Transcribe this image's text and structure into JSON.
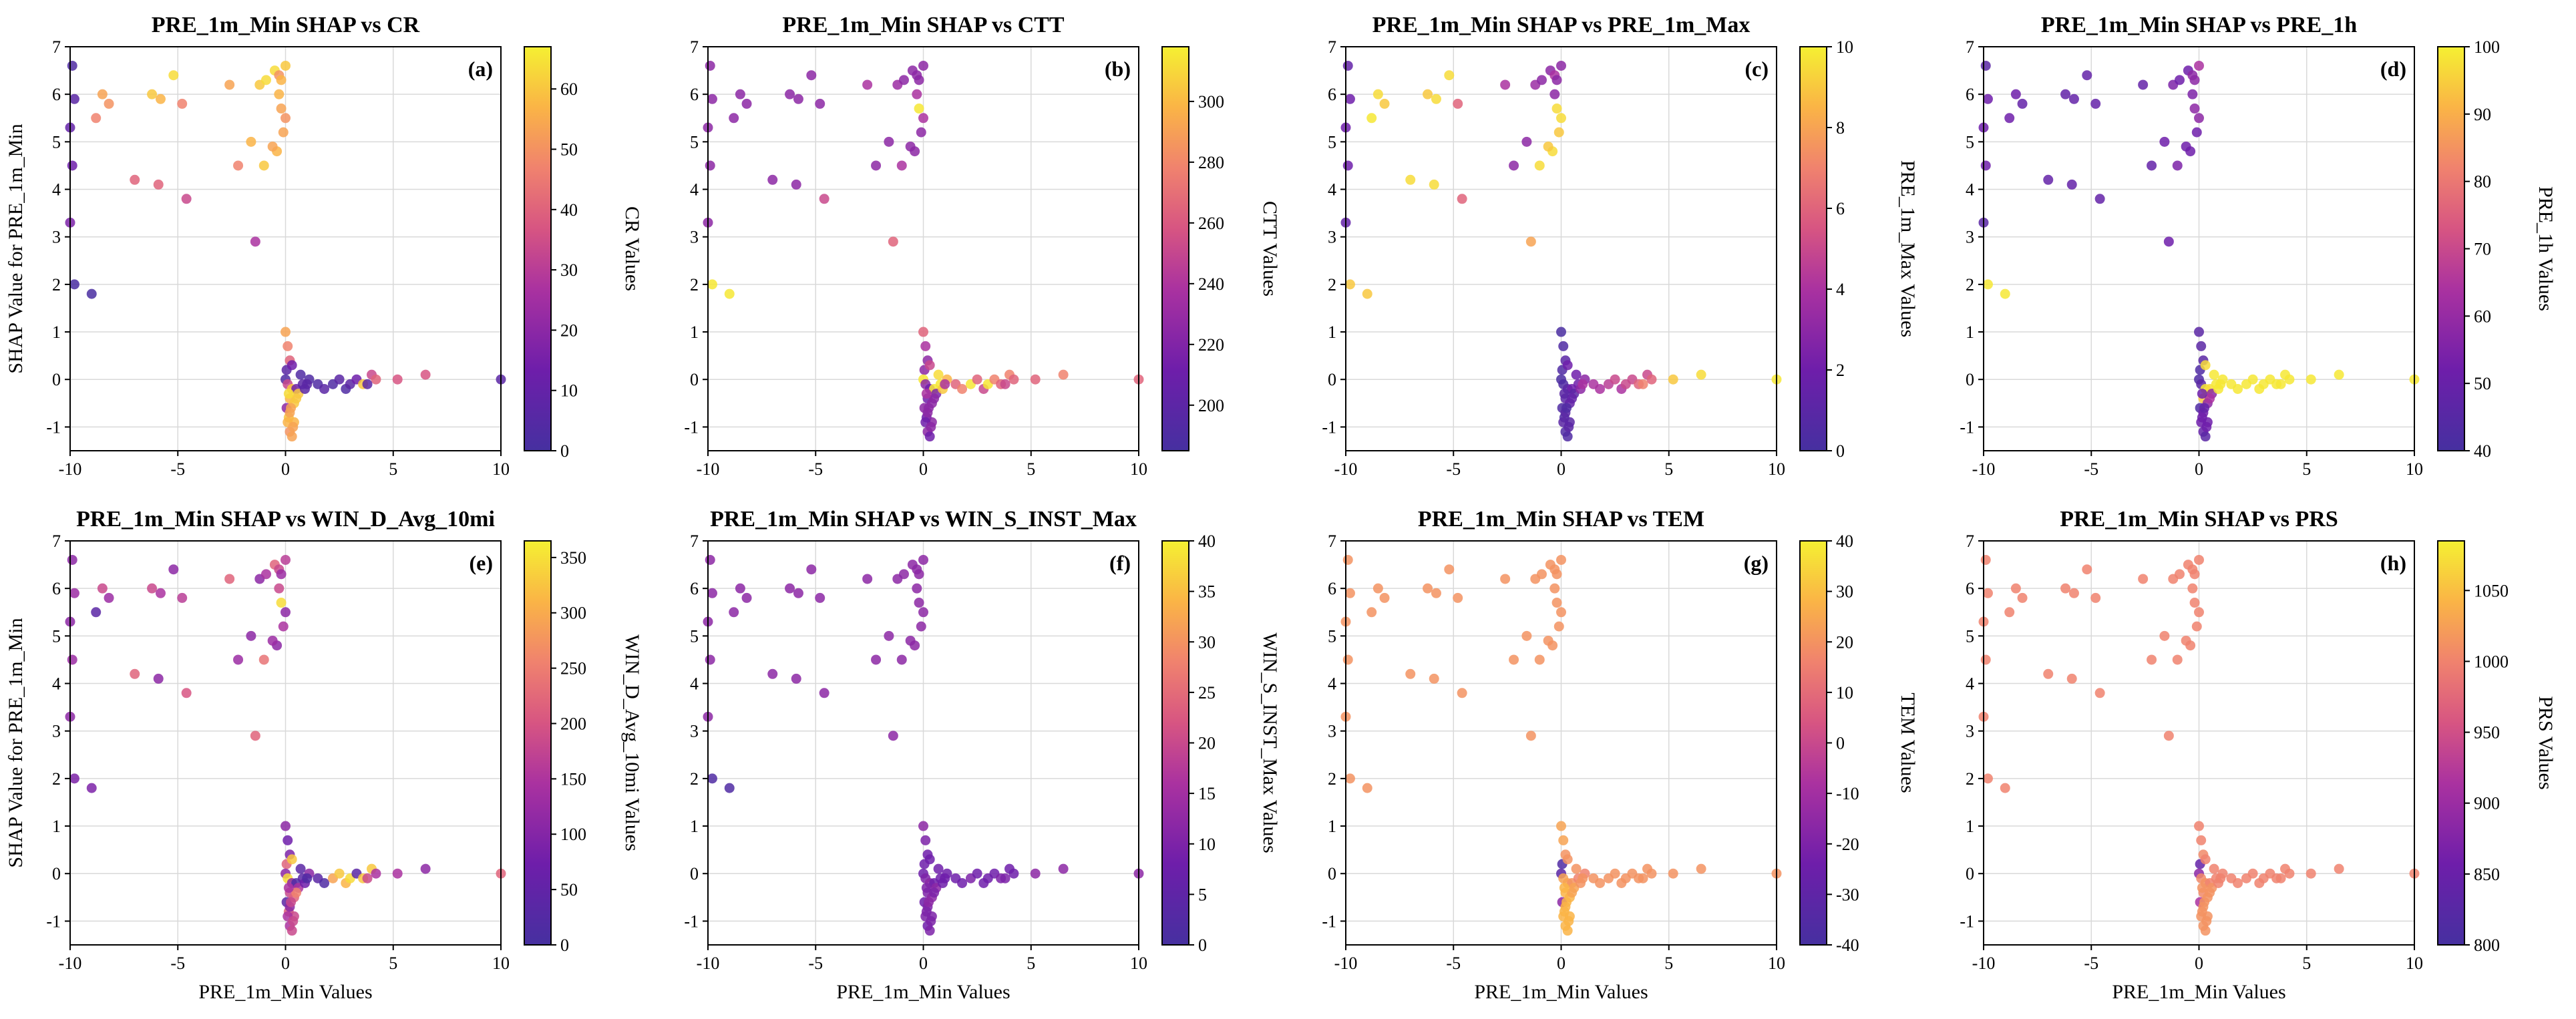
{
  "figure": {
    "shared_x_label": "PRE_1m_Min Values",
    "shared_y_label": "SHAP Value for PRE_1m_Min"
  },
  "chart_data": [
    {
      "id": "a",
      "type": "scatter",
      "title": "PRE_1m_Min SHAP vs CR",
      "panel_letter": "(a)",
      "xlabel": "",
      "ylabel": "SHAP Value for PRE_1m_Min",
      "colorbar_label": "CR Values",
      "xlim": [
        -10,
        10
      ],
      "ylim": [
        -1.5,
        7
      ],
      "x_ticks": [
        -10,
        -5,
        0,
        5,
        10
      ],
      "y_ticks": [
        -1,
        0,
        1,
        2,
        3,
        4,
        5,
        6,
        7
      ],
      "cbar_range": [
        0,
        67
      ],
      "cbar_ticks": [
        0,
        10,
        20,
        30,
        40,
        50,
        60
      ],
      "grid": true,
      "colormap": "plasma"
    },
    {
      "id": "b",
      "type": "scatter",
      "title": "PRE_1m_Min SHAP vs CTT",
      "panel_letter": "(b)",
      "xlabel": "",
      "ylabel": "",
      "colorbar_label": "CTT Values",
      "xlim": [
        -10,
        10
      ],
      "ylim": [
        -1.5,
        7
      ],
      "x_ticks": [
        -10,
        -5,
        0,
        5,
        10
      ],
      "y_ticks": [
        -1,
        0,
        1,
        2,
        3,
        4,
        5,
        6,
        7
      ],
      "cbar_range": [
        185,
        318
      ],
      "cbar_ticks": [
        200,
        220,
        240,
        260,
        280,
        300
      ],
      "grid": true,
      "colormap": "plasma"
    },
    {
      "id": "c",
      "type": "scatter",
      "title": "PRE_1m_Min SHAP vs PRE_1m_Max",
      "panel_letter": "(c)",
      "xlabel": "",
      "ylabel": "",
      "colorbar_label": "PRE_1m_Max Values",
      "xlim": [
        -10,
        10
      ],
      "ylim": [
        -1.5,
        7
      ],
      "x_ticks": [
        -10,
        -5,
        0,
        5,
        10
      ],
      "y_ticks": [
        -1,
        0,
        1,
        2,
        3,
        4,
        5,
        6,
        7
      ],
      "cbar_range": [
        0,
        10
      ],
      "cbar_ticks": [
        0,
        2,
        4,
        6,
        8,
        10
      ],
      "grid": true,
      "colormap": "plasma"
    },
    {
      "id": "d",
      "type": "scatter",
      "title": "PRE_1m_Min SHAP vs PRE_1h",
      "panel_letter": "(d)",
      "xlabel": "",
      "ylabel": "",
      "colorbar_label": "PRE_1h Values",
      "xlim": [
        -10,
        10
      ],
      "ylim": [
        -1.5,
        7
      ],
      "x_ticks": [
        -10,
        -5,
        0,
        5,
        10
      ],
      "y_ticks": [
        -1,
        0,
        1,
        2,
        3,
        4,
        5,
        6,
        7
      ],
      "cbar_range": [
        40,
        100
      ],
      "cbar_ticks": [
        40,
        50,
        60,
        70,
        80,
        90,
        100
      ],
      "grid": true,
      "colormap": "plasma"
    },
    {
      "id": "e",
      "type": "scatter",
      "title": "PRE_1m_Min SHAP vs WIN_D_Avg_10mi",
      "panel_letter": "(e)",
      "xlabel": "PRE_1m_Min Values",
      "ylabel": "SHAP Value for PRE_1m_Min",
      "colorbar_label": "WIN_D_Avg_10mi Values",
      "xlim": [
        -10,
        10
      ],
      "ylim": [
        -1.5,
        7
      ],
      "x_ticks": [
        -10,
        -5,
        0,
        5,
        10
      ],
      "y_ticks": [
        -1,
        0,
        1,
        2,
        3,
        4,
        5,
        6,
        7
      ],
      "cbar_range": [
        0,
        365
      ],
      "cbar_ticks": [
        0,
        50,
        100,
        150,
        200,
        250,
        300,
        350
      ],
      "grid": true,
      "colormap": "plasma"
    },
    {
      "id": "f",
      "type": "scatter",
      "title": "PRE_1m_Min SHAP vs WIN_S_INST_Max",
      "panel_letter": "(f)",
      "xlabel": "PRE_1m_Min Values",
      "ylabel": "",
      "colorbar_label": "WIN_S_INST_Max Values",
      "xlim": [
        -10,
        10
      ],
      "ylim": [
        -1.5,
        7
      ],
      "x_ticks": [
        -10,
        -5,
        0,
        5,
        10
      ],
      "y_ticks": [
        -1,
        0,
        1,
        2,
        3,
        4,
        5,
        6,
        7
      ],
      "cbar_range": [
        0,
        40
      ],
      "cbar_ticks": [
        0,
        5,
        10,
        15,
        20,
        25,
        30,
        35,
        40
      ],
      "grid": true,
      "colormap": "plasma"
    },
    {
      "id": "g",
      "type": "scatter",
      "title": "PRE_1m_Min SHAP vs TEM",
      "panel_letter": "(g)",
      "xlabel": "PRE_1m_Min Values",
      "ylabel": "",
      "colorbar_label": "TEM Values",
      "xlim": [
        -10,
        10
      ],
      "ylim": [
        -1.5,
        7
      ],
      "x_ticks": [
        -10,
        -5,
        0,
        5,
        10
      ],
      "y_ticks": [
        -1,
        0,
        1,
        2,
        3,
        4,
        5,
        6,
        7
      ],
      "cbar_range": [
        -40,
        40
      ],
      "cbar_ticks": [
        -40,
        -30,
        -20,
        -10,
        0,
        10,
        20,
        30,
        40
      ],
      "grid": true,
      "colormap": "plasma"
    },
    {
      "id": "h",
      "type": "scatter",
      "title": "PRE_1m_Min SHAP vs PRS",
      "panel_letter": "(h)",
      "xlabel": "PRE_1m_Min Values",
      "ylabel": "",
      "colorbar_label": "PRS Values",
      "xlim": [
        -10,
        10
      ],
      "ylim": [
        -1.5,
        7
      ],
      "x_ticks": [
        -10,
        -5,
        0,
        5,
        10
      ],
      "y_ticks": [
        -1,
        0,
        1,
        2,
        3,
        4,
        5,
        6,
        7
      ],
      "cbar_range": [
        800,
        1085
      ],
      "cbar_ticks": [
        800,
        850,
        900,
        950,
        1000,
        1050
      ],
      "grid": true,
      "colormap": "plasma"
    }
  ],
  "points": {
    "x": [
      -9.9,
      -9.8,
      -10.0,
      -9.9,
      -10.0,
      -9.8,
      -9.0,
      -8.5,
      -8.8,
      -8.2,
      -7.0,
      -6.2,
      -5.8,
      -5.2,
      -4.8,
      -5.9,
      -4.6,
      -2.6,
      -2.2,
      -1.6,
      -1.2,
      -0.9,
      -0.5,
      -0.3,
      -0.2,
      0.0,
      -0.1,
      -0.4,
      -1.0,
      -0.6,
      -0.3,
      0.0,
      -0.2,
      -1.4,
      0.0,
      0.1,
      0.2,
      0.05,
      0.0,
      0.1,
      0.3,
      0.2,
      0.05,
      0.15,
      0.5,
      0.8,
      1.1,
      0.4,
      0.6,
      0.2,
      0.3,
      0.7,
      0.9,
      1.0,
      0.4,
      0.2,
      0.1,
      0.3,
      0.5,
      0.35,
      1.5,
      1.8,
      2.2,
      2.5,
      2.8,
      3.0,
      3.3,
      3.6,
      4.0,
      4.2,
      3.8,
      5.2,
      6.5,
      10.0,
      0.15,
      0.25
    ],
    "y": [
      6.6,
      5.9,
      5.3,
      4.5,
      3.3,
      2.0,
      1.8,
      6.0,
      5.5,
      5.8,
      4.2,
      6.0,
      5.9,
      6.4,
      5.8,
      4.1,
      3.8,
      6.2,
      4.5,
      5.0,
      6.2,
      6.3,
      6.5,
      6.0,
      5.7,
      5.5,
      5.2,
      4.8,
      4.5,
      4.9,
      6.4,
      6.6,
      6.3,
      2.9,
      1.0,
      0.7,
      0.4,
      0.2,
      0.0,
      -0.1,
      -0.2,
      -0.4,
      -0.6,
      -0.8,
      -0.2,
      -0.1,
      0.0,
      -0.9,
      -0.3,
      -1.1,
      -1.2,
      0.1,
      -0.2,
      -0.1,
      -0.5,
      -0.7,
      -0.9,
      0.3,
      -0.4,
      -1.0,
      -0.1,
      -0.2,
      -0.1,
      0.0,
      -0.2,
      -0.1,
      0.0,
      -0.1,
      0.1,
      0.0,
      -0.1,
      0.0,
      0.1,
      0.0,
      -0.3,
      -0.6
    ],
    "colors": {
      "a": [
        0.05,
        0.1,
        0.15,
        0.2,
        0.25,
        0.02,
        0.02,
        0.8,
        0.7,
        0.75,
        0.6,
        0.9,
        0.85,
        0.95,
        0.7,
        0.6,
        0.5,
        0.8,
        0.7,
        0.85,
        0.9,
        0.95,
        0.95,
        0.85,
        0.8,
        0.75,
        0.8,
        0.85,
        0.9,
        0.8,
        0.75,
        0.9,
        0.85,
        0.4,
        0.8,
        0.7,
        0.6,
        0.1,
        0.05,
        0.5,
        0.9,
        0.85,
        0.3,
        0.9,
        0.2,
        0.1,
        0.05,
        0.85,
        0.9,
        0.75,
        0.8,
        0.05,
        0.1,
        0.1,
        0.9,
        0.8,
        0.85,
        0.2,
        0.9,
        0.8,
        0.05,
        0.1,
        0.05,
        0.1,
        0.05,
        0.1,
        0.2,
        0.9,
        0.5,
        0.6,
        0.1,
        0.55,
        0.55,
        0.1,
        0.95,
        0.8
      ],
      "b": [
        0.3,
        0.3,
        0.3,
        0.3,
        0.3,
        0.98,
        0.98,
        0.3,
        0.3,
        0.3,
        0.3,
        0.3,
        0.3,
        0.3,
        0.3,
        0.3,
        0.5,
        0.4,
        0.3,
        0.3,
        0.35,
        0.3,
        0.3,
        0.4,
        0.98,
        0.4,
        0.3,
        0.3,
        0.4,
        0.3,
        0.3,
        0.3,
        0.3,
        0.6,
        0.6,
        0.4,
        0.3,
        0.3,
        0.98,
        0.3,
        0.2,
        0.2,
        0.3,
        0.2,
        0.98,
        0.98,
        0.85,
        0.3,
        0.25,
        0.3,
        0.2,
        0.95,
        0.9,
        0.4,
        0.3,
        0.3,
        0.2,
        0.5,
        0.3,
        0.3,
        0.6,
        0.7,
        0.98,
        0.6,
        0.5,
        0.98,
        0.7,
        0.6,
        0.7,
        0.6,
        0.5,
        0.6,
        0.7,
        0.6,
        0.4,
        0.3
      ],
      "c": [
        0.15,
        0.2,
        0.2,
        0.2,
        0.15,
        0.9,
        0.9,
        0.95,
        0.98,
        0.9,
        0.95,
        0.9,
        0.95,
        0.95,
        0.6,
        0.95,
        0.6,
        0.4,
        0.3,
        0.3,
        0.35,
        0.3,
        0.3,
        0.3,
        0.95,
        0.95,
        0.9,
        0.95,
        0.95,
        0.9,
        0.4,
        0.3,
        0.3,
        0.8,
        0.02,
        0.05,
        0.1,
        0.05,
        0.02,
        0.05,
        0.1,
        0.1,
        0.05,
        0.05,
        0.2,
        0.2,
        0.3,
        0.1,
        0.1,
        0.05,
        0.05,
        0.2,
        0.3,
        0.4,
        0.15,
        0.1,
        0.1,
        0.2,
        0.15,
        0.1,
        0.4,
        0.4,
        0.45,
        0.5,
        0.4,
        0.5,
        0.5,
        0.6,
        0.5,
        0.6,
        0.7,
        0.9,
        0.95,
        0.98,
        0.1,
        0.05
      ],
      "d": [
        0.1,
        0.2,
        0.2,
        0.2,
        0.1,
        0.98,
        0.98,
        0.2,
        0.2,
        0.15,
        0.15,
        0.15,
        0.15,
        0.15,
        0.15,
        0.15,
        0.15,
        0.15,
        0.15,
        0.2,
        0.25,
        0.2,
        0.2,
        0.25,
        0.3,
        0.3,
        0.2,
        0.2,
        0.25,
        0.2,
        0.3,
        0.4,
        0.3,
        0.2,
        0.1,
        0.1,
        0.1,
        0.05,
        0.05,
        0.1,
        0.98,
        0.9,
        0.05,
        0.2,
        0.95,
        0.98,
        0.98,
        0.2,
        0.3,
        0.15,
        0.1,
        0.98,
        0.98,
        0.98,
        0.3,
        0.2,
        0.2,
        0.95,
        0.4,
        0.2,
        0.98,
        0.98,
        0.98,
        0.98,
        0.98,
        0.98,
        0.98,
        0.98,
        0.98,
        0.98,
        0.98,
        0.98,
        0.98,
        0.98,
        0.2,
        0.15
      ],
      "e": [
        0.3,
        0.35,
        0.3,
        0.35,
        0.3,
        0.25,
        0.25,
        0.5,
        0.1,
        0.35,
        0.6,
        0.5,
        0.4,
        0.3,
        0.45,
        0.3,
        0.55,
        0.6,
        0.35,
        0.3,
        0.3,
        0.4,
        0.6,
        0.5,
        0.95,
        0.3,
        0.4,
        0.3,
        0.65,
        0.35,
        0.5,
        0.45,
        0.35,
        0.6,
        0.3,
        0.2,
        0.25,
        0.6,
        0.3,
        0.95,
        0.3,
        0.5,
        0.1,
        0.6,
        0.05,
        0.1,
        0.3,
        0.5,
        0.4,
        0.4,
        0.5,
        0.1,
        0.2,
        0.05,
        0.6,
        0.3,
        0.4,
        0.9,
        0.7,
        0.5,
        0.1,
        0.05,
        0.8,
        0.9,
        0.85,
        0.95,
        0.1,
        0.9,
        0.9,
        0.4,
        0.5,
        0.4,
        0.3,
        0.6,
        0.4,
        0.5
      ],
      "f": [
        0.3,
        0.3,
        0.3,
        0.3,
        0.3,
        0.05,
        0.05,
        0.3,
        0.3,
        0.3,
        0.3,
        0.3,
        0.3,
        0.3,
        0.3,
        0.3,
        0.3,
        0.3,
        0.3,
        0.3,
        0.3,
        0.3,
        0.3,
        0.3,
        0.3,
        0.3,
        0.3,
        0.3,
        0.3,
        0.3,
        0.3,
        0.3,
        0.3,
        0.3,
        0.3,
        0.25,
        0.2,
        0.2,
        0.2,
        0.25,
        0.3,
        0.25,
        0.2,
        0.25,
        0.2,
        0.2,
        0.2,
        0.25,
        0.3,
        0.2,
        0.25,
        0.2,
        0.2,
        0.2,
        0.3,
        0.25,
        0.25,
        0.2,
        0.25,
        0.25,
        0.2,
        0.2,
        0.25,
        0.2,
        0.2,
        0.2,
        0.2,
        0.25,
        0.2,
        0.2,
        0.25,
        0.3,
        0.3,
        0.3,
        0.25,
        0.3
      ],
      "g": [
        0.75,
        0.75,
        0.75,
        0.75,
        0.75,
        0.75,
        0.75,
        0.75,
        0.75,
        0.75,
        0.75,
        0.75,
        0.75,
        0.75,
        0.75,
        0.75,
        0.75,
        0.75,
        0.75,
        0.75,
        0.75,
        0.75,
        0.75,
        0.75,
        0.75,
        0.75,
        0.75,
        0.75,
        0.75,
        0.75,
        0.75,
        0.75,
        0.75,
        0.75,
        0.8,
        0.8,
        0.75,
        0.05,
        0.1,
        0.8,
        0.8,
        0.85,
        0.3,
        0.85,
        0.75,
        0.7,
        0.7,
        0.85,
        0.8,
        0.85,
        0.85,
        0.75,
        0.75,
        0.75,
        0.85,
        0.85,
        0.85,
        0.75,
        0.8,
        0.85,
        0.75,
        0.75,
        0.75,
        0.75,
        0.75,
        0.75,
        0.75,
        0.75,
        0.75,
        0.75,
        0.75,
        0.75,
        0.75,
        0.75,
        0.85,
        0.85
      ],
      "h": [
        0.7,
        0.7,
        0.7,
        0.7,
        0.7,
        0.7,
        0.7,
        0.7,
        0.7,
        0.7,
        0.7,
        0.7,
        0.7,
        0.7,
        0.7,
        0.7,
        0.7,
        0.7,
        0.7,
        0.7,
        0.7,
        0.7,
        0.7,
        0.7,
        0.7,
        0.7,
        0.7,
        0.7,
        0.7,
        0.7,
        0.7,
        0.7,
        0.7,
        0.7,
        0.7,
        0.7,
        0.72,
        0.15,
        0.3,
        0.72,
        0.75,
        0.72,
        0.4,
        0.75,
        0.7,
        0.7,
        0.7,
        0.75,
        0.75,
        0.75,
        0.75,
        0.7,
        0.7,
        0.7,
        0.75,
        0.75,
        0.75,
        0.7,
        0.75,
        0.75,
        0.7,
        0.7,
        0.7,
        0.7,
        0.7,
        0.7,
        0.7,
        0.7,
        0.7,
        0.7,
        0.7,
        0.7,
        0.7,
        0.7,
        0.75,
        0.75
      ]
    }
  }
}
